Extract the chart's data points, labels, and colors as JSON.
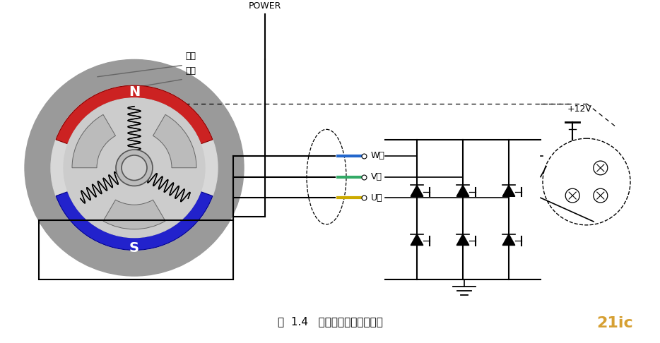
{
  "title": "图  1.4   无刺直流电机转动原理",
  "bg_color": "#ffffff",
  "N_color": "#cc2222",
  "S_color": "#2222cc",
  "stator_color": "#999999",
  "rotor_label": "转子",
  "stator_label": "定子",
  "N_label": "N",
  "S_label": "S",
  "POWER_label": "POWER",
  "W_label": "W相",
  "V_label": "V相",
  "U_label": "U相",
  "plus12V_label": "+12V",
  "wire_W": "#2266cc",
  "wire_V": "#33aa66",
  "wire_U": "#ccaa00",
  "watermark": "21ic"
}
